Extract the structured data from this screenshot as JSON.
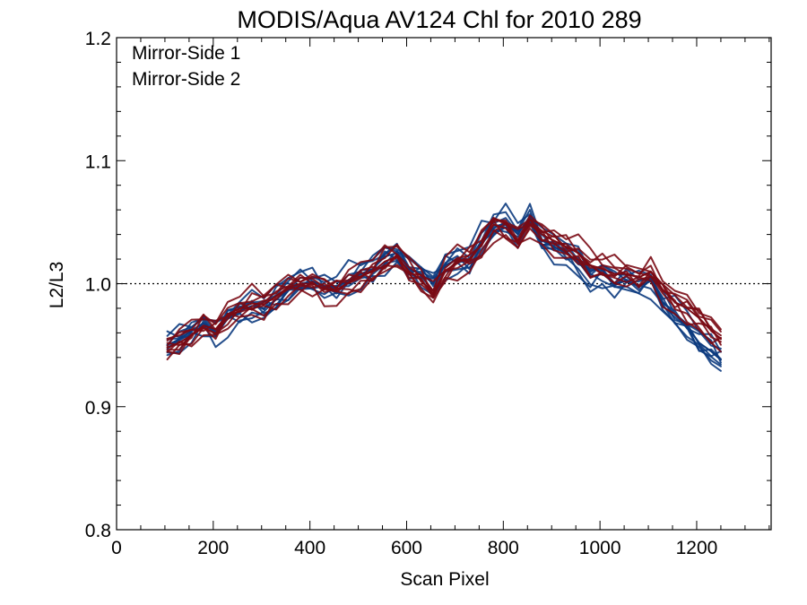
{
  "chart_data": {
    "type": "line",
    "title": "MODIS/Aqua AV124 Chl for 2010 289",
    "xlabel": "Scan Pixel",
    "ylabel": "L2/L3",
    "xlim": [
      0,
      1354
    ],
    "ylim": [
      0.8,
      1.2
    ],
    "xticks": [
      0,
      200,
      400,
      600,
      800,
      1000,
      1200
    ],
    "xtick_labels": [
      "0",
      "200",
      "400",
      "600",
      "800",
      "1000",
      "1200"
    ],
    "yticks": [
      0.8,
      0.9,
      1.0,
      1.1,
      1.2
    ],
    "ytick_labels": [
      "0.8",
      "0.9",
      "1.0",
      "1.1",
      "1.2"
    ],
    "reference_line": {
      "y": 1.0,
      "style": "dotted"
    },
    "legend_position": "top-left",
    "grid": false,
    "x": [
      105,
      130,
      155,
      180,
      205,
      230,
      255,
      280,
      305,
      330,
      355,
      380,
      405,
      430,
      455,
      480,
      505,
      530,
      555,
      580,
      605,
      630,
      655,
      680,
      705,
      730,
      755,
      780,
      805,
      830,
      855,
      880,
      905,
      930,
      955,
      980,
      1005,
      1030,
      1055,
      1080,
      1105,
      1130,
      1155,
      1180,
      1205,
      1230,
      1250
    ],
    "series": [
      {
        "name": "Mirror-Side 1",
        "color": "#0b3a7e",
        "values": [
          0.95,
          0.955,
          0.962,
          0.968,
          0.96,
          0.972,
          0.978,
          0.982,
          0.98,
          0.987,
          0.995,
          1.0,
          1.002,
          0.998,
          0.997,
          1.003,
          1.008,
          1.012,
          1.022,
          1.025,
          1.012,
          1.008,
          1.0,
          1.015,
          1.02,
          1.018,
          1.035,
          1.045,
          1.05,
          1.04,
          1.055,
          1.035,
          1.03,
          1.025,
          1.018,
          1.005,
          1.008,
          1.0,
          1.002,
          0.998,
          1.002,
          0.985,
          0.975,
          0.965,
          0.952,
          0.945,
          0.938
        ]
      },
      {
        "name": "Mirror-Side 2",
        "color": "#7a0a14",
        "values": [
          0.948,
          0.952,
          0.958,
          0.966,
          0.963,
          0.975,
          0.98,
          0.984,
          0.983,
          0.99,
          0.997,
          1.0,
          1.0,
          0.996,
          0.995,
          1.001,
          1.006,
          1.01,
          1.018,
          1.022,
          1.01,
          1.003,
          0.992,
          1.01,
          1.018,
          1.02,
          1.032,
          1.048,
          1.045,
          1.035,
          1.048,
          1.04,
          1.035,
          1.03,
          1.025,
          1.015,
          1.012,
          1.008,
          1.008,
          1.005,
          1.01,
          0.995,
          0.985,
          0.98,
          0.972,
          0.962,
          0.955
        ]
      }
    ]
  }
}
